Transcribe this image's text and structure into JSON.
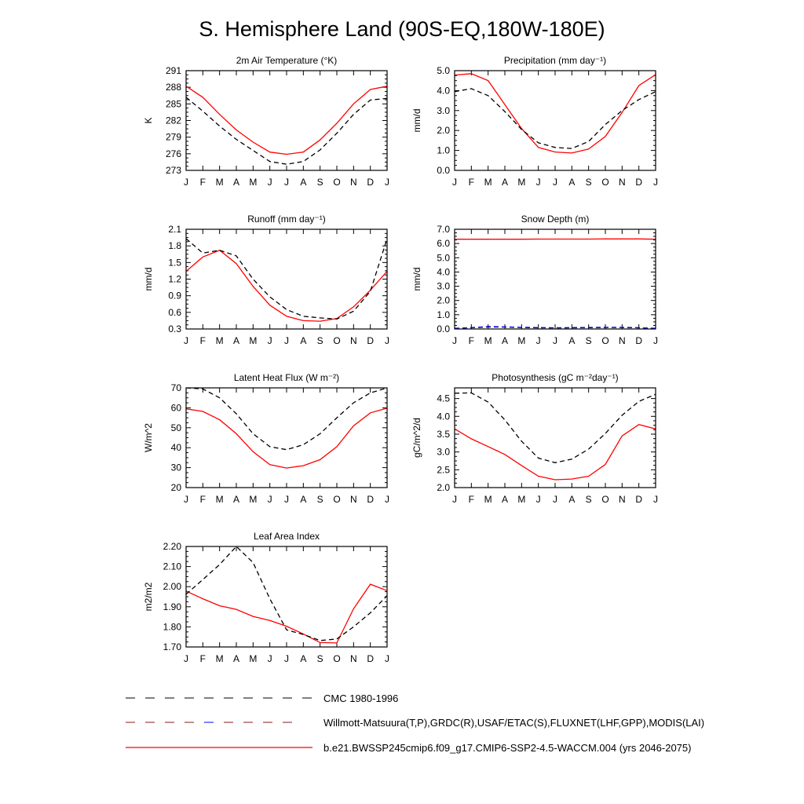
{
  "page_title": "S. Hemisphere Land (90S-EQ,180W-180E)",
  "legend": [
    {
      "label": "CMC 1980-1996",
      "style": "black-dash"
    },
    {
      "label": "Willmott-Matsuura(T,P),GRDC(R),USAF/ETAC(S),FLUXNET(LHF,GPP),MODIS(LAI)",
      "style": "red-blue-dash"
    },
    {
      "label": "b.e21.BWSSP245cmip6.f09_g17.CMIP6-SSP2-4.5-WACCM.004 (yrs 2046-2075)",
      "style": "red-solid"
    }
  ],
  "colors": {
    "model": "#ff0000",
    "obs": "#000000",
    "snow_obs": "#0000ff"
  },
  "chart_data": [
    {
      "type": "line",
      "title": "2m Air Temperature (°K)",
      "ylabel": "K",
      "categories": [
        "J",
        "F",
        "M",
        "A",
        "M",
        "J",
        "J",
        "A",
        "S",
        "O",
        "N",
        "D",
        "J"
      ],
      "ylim": [
        273,
        291
      ],
      "yticks": [
        273,
        276,
        279,
        282,
        285,
        288,
        291
      ],
      "ytick_labels": [
        "273",
        "276",
        "279",
        "282",
        "285",
        "288",
        "291"
      ],
      "series": [
        {
          "name": "b.e21.BWSSP245cmip6.f09_g17.CMIP6-SSP2-4.5-WACCM.004 (yrs 2046-2075)",
          "values": [
            288.2,
            286.2,
            283.1,
            280.3,
            278.1,
            276.3,
            275.9,
            276.3,
            278.5,
            281.5,
            285.0,
            287.6,
            288.2
          ]
        },
        {
          "name": "Willmott-Matsuura(T,P),GRDC(R),USAF/ETAC(S),FLUXNET(LHF,GPP),MODIS(LAI)",
          "values": [
            286.2,
            283.7,
            281.0,
            278.6,
            276.6,
            274.6,
            274.1,
            274.6,
            276.7,
            279.7,
            283.1,
            285.7,
            286.0
          ]
        }
      ]
    },
    {
      "type": "line",
      "title": "Precipitation (mm day⁻¹)",
      "ylabel": "mm/d",
      "categories": [
        "J",
        "F",
        "M",
        "A",
        "M",
        "J",
        "J",
        "A",
        "S",
        "O",
        "N",
        "D",
        "J"
      ],
      "ylim": [
        0,
        5
      ],
      "yticks": [
        0,
        1,
        2,
        3,
        4,
        5
      ],
      "ytick_labels": [
        "0.0",
        "1.0",
        "2.0",
        "3.0",
        "4.0",
        "5.0"
      ],
      "series": [
        {
          "name": "b.e21.BWSSP245cmip6.f09_g17.CMIP6-SSP2-4.5-WACCM.004 (yrs 2046-2075)",
          "values": [
            4.78,
            4.85,
            4.5,
            3.3,
            2.1,
            1.15,
            0.92,
            0.87,
            1.07,
            1.7,
            2.9,
            4.25,
            4.8
          ]
        },
        {
          "name": "Willmott-Matsuura(T,P),GRDC(R),USAF/ETAC(S),FLUXNET(LHF,GPP),MODIS(LAI)",
          "values": [
            3.95,
            4.1,
            3.75,
            2.95,
            2.05,
            1.38,
            1.15,
            1.1,
            1.45,
            2.3,
            3.0,
            3.55,
            3.95
          ]
        }
      ]
    },
    {
      "type": "line",
      "title": "Runoff (mm day⁻¹)",
      "ylabel": "mm/d",
      "categories": [
        "J",
        "F",
        "M",
        "A",
        "M",
        "J",
        "J",
        "A",
        "S",
        "O",
        "N",
        "D",
        "J"
      ],
      "ylim": [
        0.3,
        2.1
      ],
      "yticks": [
        0.3,
        0.6,
        0.9,
        1.2,
        1.5,
        1.8,
        2.1
      ],
      "ytick_labels": [
        "0.3",
        "0.6",
        "0.9",
        "1.2",
        "1.5",
        "1.8",
        "2.1"
      ],
      "series": [
        {
          "name": "b.e21.BWSSP245cmip6.f09_g17.CMIP6-SSP2-4.5-WACCM.004 (yrs 2046-2075)",
          "values": [
            1.34,
            1.6,
            1.72,
            1.48,
            1.07,
            0.73,
            0.53,
            0.45,
            0.44,
            0.49,
            0.7,
            1.0,
            1.34
          ]
        },
        {
          "name": "Willmott-Matsuura(T,P),GRDC(R),USAF/ETAC(S),FLUXNET(LHF,GPP),MODIS(LAI)",
          "values": [
            1.93,
            1.67,
            1.72,
            1.62,
            1.2,
            0.88,
            0.65,
            0.53,
            0.5,
            0.48,
            0.62,
            0.98,
            1.93
          ]
        }
      ]
    },
    {
      "type": "line",
      "title": "Snow Depth (m)",
      "ylabel": "mm/d",
      "categories": [
        "J",
        "F",
        "M",
        "A",
        "M",
        "J",
        "J",
        "A",
        "S",
        "O",
        "N",
        "D",
        "J"
      ],
      "ylim": [
        0,
        7
      ],
      "yticks": [
        0,
        1,
        2,
        3,
        4,
        5,
        6,
        7
      ],
      "ytick_labels": [
        "0.0",
        "1.0",
        "2.0",
        "3.0",
        "4.0",
        "5.0",
        "6.0",
        "7.0"
      ],
      "series": [
        {
          "name": "b.e21.BWSSP245cmip6.f09_g17.CMIP6-SSP2-4.5-WACCM.004 (yrs 2046-2075)",
          "values": [
            6.3,
            6.3,
            6.3,
            6.3,
            6.3,
            6.31,
            6.31,
            6.31,
            6.31,
            6.32,
            6.32,
            6.32,
            6.3
          ]
        },
        {
          "name": "CMC 1980-1996",
          "values": [
            0.04,
            0.08,
            0.14,
            0.13,
            0.1,
            0.08,
            0.07,
            0.08,
            0.09,
            0.1,
            0.1,
            0.08,
            0.04
          ]
        },
        {
          "name": "Willmott-Matsuura(T,P),GRDC(R),USAF/ETAC(S),FLUXNET(LHF,GPP),MODIS(LAI)",
          "values": [
            0.05,
            0.1,
            0.17,
            0.15,
            0.12,
            0.1,
            0.09,
            0.1,
            0.11,
            0.12,
            0.12,
            0.09,
            0.05
          ]
        }
      ]
    },
    {
      "type": "line",
      "title": "Latent Heat Flux (W m⁻²)",
      "ylabel": "W/m^2",
      "categories": [
        "J",
        "F",
        "M",
        "A",
        "M",
        "J",
        "J",
        "A",
        "S",
        "O",
        "N",
        "D",
        "J"
      ],
      "ylim": [
        20,
        70
      ],
      "yticks": [
        20,
        30,
        40,
        50,
        60,
        70
      ],
      "ytick_labels": [
        "20",
        "30",
        "40",
        "50",
        "60",
        "70"
      ],
      "series": [
        {
          "name": "b.e21.BWSSP245cmip6.f09_g17.CMIP6-SSP2-4.5-WACCM.004 (yrs 2046-2075)",
          "values": [
            59.5,
            58.2,
            54.0,
            47.0,
            38.0,
            31.5,
            29.8,
            31.0,
            34.0,
            40.5,
            51.0,
            57.5,
            59.8
          ]
        },
        {
          "name": "Willmott-Matsuura(T,P),GRDC(R),USAF/ETAC(S),FLUXNET(LHF,GPP),MODIS(LAI)",
          "values": [
            70.0,
            69.5,
            65.0,
            57.0,
            47.0,
            40.5,
            39.0,
            41.5,
            47.0,
            55.0,
            62.5,
            67.5,
            70.0
          ]
        }
      ]
    },
    {
      "type": "line",
      "title": "Photosynthesis (gC m⁻²day⁻¹)",
      "ylabel": "gC/m^2/d",
      "categories": [
        "J",
        "F",
        "M",
        "A",
        "M",
        "J",
        "J",
        "A",
        "S",
        "O",
        "N",
        "D",
        "J"
      ],
      "ylim": [
        2.0,
        4.8
      ],
      "yticks": [
        2.0,
        2.5,
        3.0,
        3.5,
        4.0,
        4.5
      ],
      "ytick_labels": [
        "2.0",
        "2.5",
        "3.0",
        "3.5",
        "4.0",
        "4.5"
      ],
      "series": [
        {
          "name": "b.e21.BWSSP245cmip6.f09_g17.CMIP6-SSP2-4.5-WACCM.004 (yrs 2046-2075)",
          "values": [
            3.65,
            3.37,
            3.15,
            2.93,
            2.62,
            2.32,
            2.22,
            2.24,
            2.32,
            2.65,
            3.45,
            3.77,
            3.65
          ]
        },
        {
          "name": "Willmott-Matsuura(T,P),GRDC(R),USAF/ETAC(S),FLUXNET(LHF,GPP),MODIS(LAI)",
          "values": [
            4.65,
            4.66,
            4.4,
            3.9,
            3.3,
            2.83,
            2.7,
            2.8,
            3.08,
            3.52,
            4.03,
            4.42,
            4.62
          ]
        }
      ]
    },
    {
      "type": "line",
      "title": "Leaf Area Index",
      "ylabel": "m2/m2",
      "categories": [
        "J",
        "F",
        "M",
        "A",
        "M",
        "J",
        "J",
        "A",
        "S",
        "O",
        "N",
        "D",
        "J"
      ],
      "ylim": [
        1.7,
        2.2
      ],
      "yticks": [
        1.7,
        1.8,
        1.9,
        2.0,
        2.1,
        2.2
      ],
      "ytick_labels": [
        "1.70",
        "1.80",
        "1.90",
        "2.00",
        "2.10",
        "2.20"
      ],
      "series": [
        {
          "name": "b.e21.BWSSP245cmip6.f09_g17.CMIP6-SSP2-4.5-WACCM.004 (yrs 2046-2075)",
          "values": [
            1.978,
            1.94,
            1.905,
            1.887,
            1.852,
            1.832,
            1.803,
            1.765,
            1.722,
            1.72,
            1.89,
            2.012,
            1.98
          ]
        },
        {
          "name": "Willmott-Matsuura(T,P),GRDC(R),USAF/ETAC(S),FLUXNET(LHF,GPP),MODIS(LAI)",
          "values": [
            1.962,
            2.035,
            2.11,
            2.2,
            2.12,
            1.94,
            1.785,
            1.762,
            1.732,
            1.74,
            1.8,
            1.87,
            1.955
          ]
        }
      ]
    }
  ]
}
